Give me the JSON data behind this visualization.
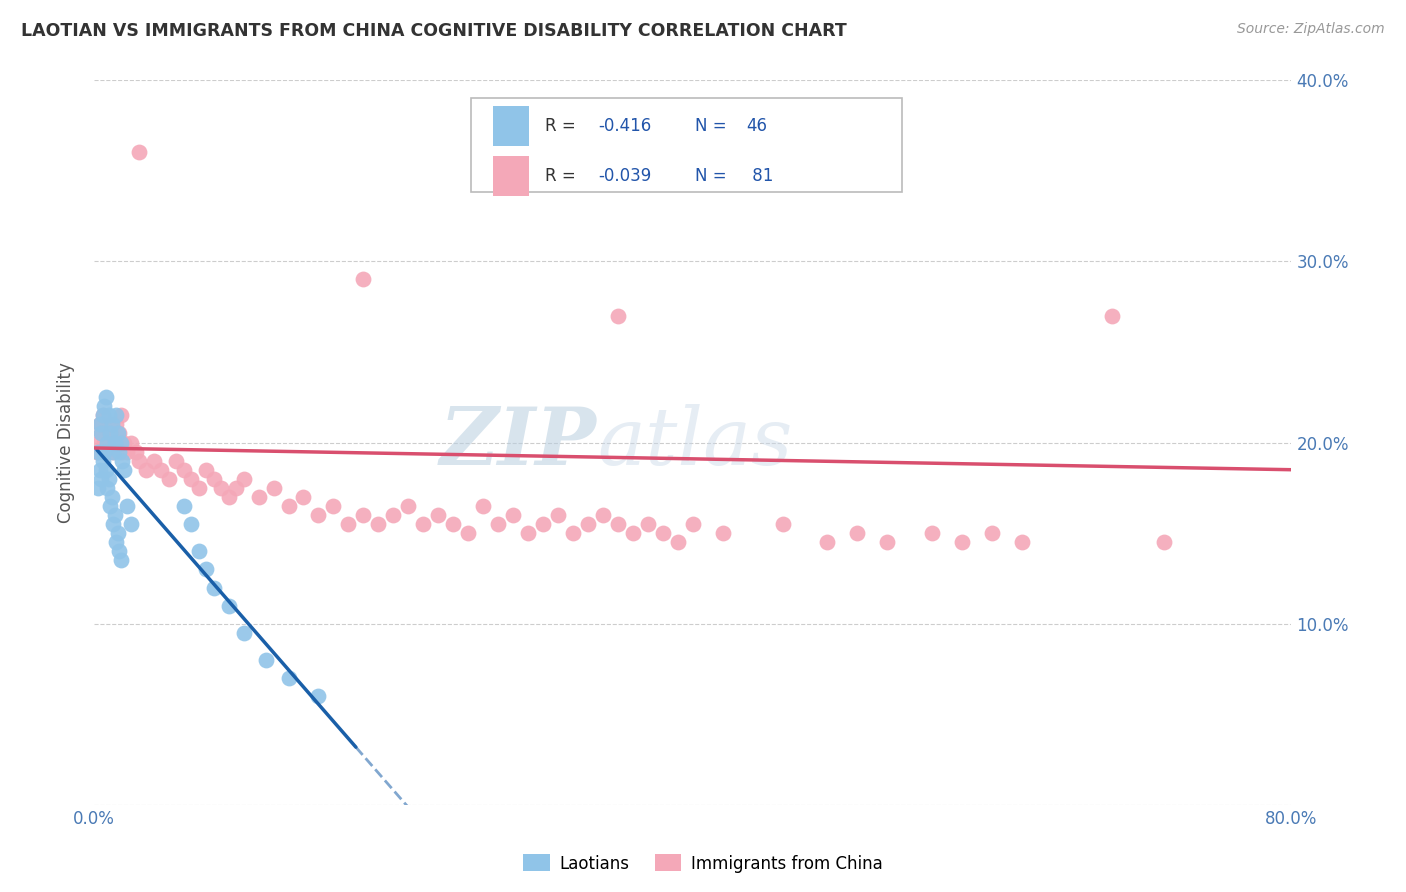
{
  "title": "LAOTIAN VS IMMIGRANTS FROM CHINA COGNITIVE DISABILITY CORRELATION CHART",
  "source": "Source: ZipAtlas.com",
  "ylabel": "Cognitive Disability",
  "xlim": [
    0.0,
    0.8
  ],
  "ylim": [
    0.0,
    0.4
  ],
  "xtick_positions": [
    0.0,
    0.1,
    0.2,
    0.3,
    0.4,
    0.5,
    0.6,
    0.7,
    0.8
  ],
  "xtick_labels": [
    "0.0%",
    "",
    "",
    "",
    "",
    "",
    "",
    "",
    "80.0%"
  ],
  "ytick_positions": [
    0.0,
    0.1,
    0.2,
    0.3,
    0.4
  ],
  "ytick_labels_right": [
    "",
    "10.0%",
    "20.0%",
    "30.0%",
    "40.0%"
  ],
  "blue_R": "-0.416",
  "blue_N": "46",
  "pink_R": "-0.039",
  "pink_N": "81",
  "blue_color": "#90c4e8",
  "pink_color": "#f4a8b8",
  "blue_line_color": "#1a5fa8",
  "pink_line_color": "#d94f6e",
  "watermark_color": "#d0e4f4",
  "blue_points_x": [
    0.003,
    0.004,
    0.005,
    0.006,
    0.007,
    0.008,
    0.009,
    0.01,
    0.011,
    0.012,
    0.013,
    0.014,
    0.015,
    0.016,
    0.017,
    0.018,
    0.019,
    0.02,
    0.022,
    0.025,
    0.003,
    0.004,
    0.005,
    0.006,
    0.007,
    0.008,
    0.009,
    0.01,
    0.011,
    0.012,
    0.013,
    0.014,
    0.015,
    0.016,
    0.017,
    0.018,
    0.06,
    0.065,
    0.07,
    0.075,
    0.08,
    0.09,
    0.1,
    0.115,
    0.13,
    0.15
  ],
  "blue_points_y": [
    0.195,
    0.21,
    0.205,
    0.215,
    0.22,
    0.225,
    0.2,
    0.215,
    0.205,
    0.21,
    0.195,
    0.2,
    0.215,
    0.205,
    0.195,
    0.2,
    0.19,
    0.185,
    0.165,
    0.155,
    0.175,
    0.185,
    0.18,
    0.19,
    0.195,
    0.185,
    0.175,
    0.18,
    0.165,
    0.17,
    0.155,
    0.16,
    0.145,
    0.15,
    0.14,
    0.135,
    0.165,
    0.155,
    0.14,
    0.13,
    0.12,
    0.11,
    0.095,
    0.08,
    0.07,
    0.06
  ],
  "pink_points_x": [
    0.002,
    0.003,
    0.004,
    0.005,
    0.006,
    0.007,
    0.008,
    0.009,
    0.01,
    0.011,
    0.012,
    0.013,
    0.014,
    0.015,
    0.016,
    0.017,
    0.018,
    0.019,
    0.02,
    0.022,
    0.025,
    0.028,
    0.03,
    0.035,
    0.04,
    0.045,
    0.05,
    0.055,
    0.06,
    0.065,
    0.07,
    0.075,
    0.08,
    0.085,
    0.09,
    0.095,
    0.1,
    0.11,
    0.12,
    0.13,
    0.14,
    0.15,
    0.16,
    0.17,
    0.18,
    0.19,
    0.2,
    0.21,
    0.22,
    0.23,
    0.24,
    0.25,
    0.26,
    0.27,
    0.28,
    0.29,
    0.3,
    0.31,
    0.32,
    0.33,
    0.34,
    0.35,
    0.36,
    0.37,
    0.38,
    0.39,
    0.4,
    0.35,
    0.42,
    0.46,
    0.49,
    0.51,
    0.53,
    0.56,
    0.58,
    0.6,
    0.62,
    0.68,
    0.715,
    0.18,
    0.03
  ],
  "pink_points_y": [
    0.195,
    0.2,
    0.21,
    0.205,
    0.215,
    0.2,
    0.205,
    0.195,
    0.21,
    0.2,
    0.205,
    0.195,
    0.2,
    0.21,
    0.2,
    0.205,
    0.215,
    0.195,
    0.2,
    0.195,
    0.2,
    0.195,
    0.19,
    0.185,
    0.19,
    0.185,
    0.18,
    0.19,
    0.185,
    0.18,
    0.175,
    0.185,
    0.18,
    0.175,
    0.17,
    0.175,
    0.18,
    0.17,
    0.175,
    0.165,
    0.17,
    0.16,
    0.165,
    0.155,
    0.16,
    0.155,
    0.16,
    0.165,
    0.155,
    0.16,
    0.155,
    0.15,
    0.165,
    0.155,
    0.16,
    0.15,
    0.155,
    0.16,
    0.15,
    0.155,
    0.16,
    0.155,
    0.15,
    0.155,
    0.15,
    0.145,
    0.155,
    0.27,
    0.15,
    0.155,
    0.145,
    0.15,
    0.145,
    0.15,
    0.145,
    0.15,
    0.145,
    0.27,
    0.145,
    0.29,
    0.36
  ]
}
